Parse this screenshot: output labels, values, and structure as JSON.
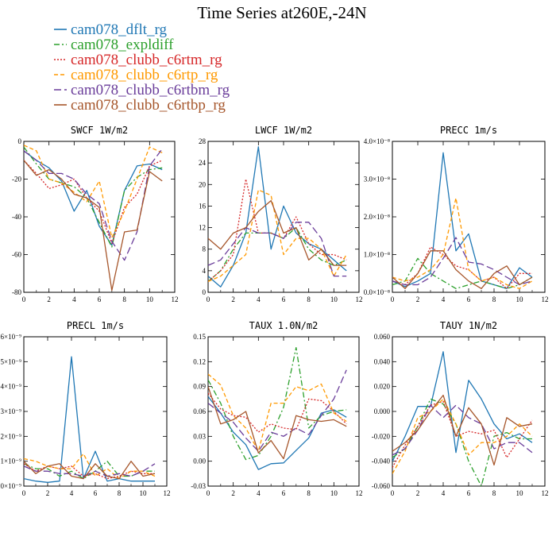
{
  "figure": {
    "title": "Time Series at260E,-24N"
  },
  "legend": [
    {
      "name": "cam078_dflt_rg",
      "color": "#1f77b4",
      "dash": "solid"
    },
    {
      "name": "cam078_expldiff",
      "color": "#2ca02c",
      "dash": "dashdot"
    },
    {
      "name": "cam078_clubb_c6rtm_rg",
      "color": "#d62728",
      "dash": "dotted"
    },
    {
      "name": "cam078_clubb_c6rtp_rg",
      "color": "#ff9900",
      "dash": "dashed"
    },
    {
      "name": "cam078_clubb_c6rtbm_rg",
      "color": "#6a3d9a",
      "dash": "longdash"
    },
    {
      "name": "cam078_clubb_c6rtbp_rg",
      "color": "#a6562b",
      "dash": "solid"
    }
  ],
  "chart_data": [
    {
      "type": "line",
      "title": "SWCF 1W/m2",
      "x": [
        0,
        1,
        2,
        3,
        4,
        5,
        6,
        7,
        8,
        9,
        10,
        11
      ],
      "xlim": [
        0,
        12
      ],
      "ylim": [
        -80,
        0
      ],
      "xticks": [
        0,
        2,
        4,
        6,
        8,
        10,
        12
      ],
      "yticks": [
        -80,
        -60,
        -40,
        -20,
        0
      ],
      "ytick_labels": [
        "-80",
        "-60",
        "-40",
        "-20",
        "0"
      ],
      "series": [
        {
          "values": [
            -5,
            -10,
            -14,
            -21,
            -37,
            -26,
            -45,
            -55,
            -26,
            -13,
            -12,
            -15
          ]
        },
        {
          "values": [
            -3,
            -12,
            -20,
            -22,
            -24,
            -30,
            -43,
            -56,
            -26,
            -19,
            -15,
            -14
          ]
        },
        {
          "values": [
            -10,
            -17,
            -25,
            -23,
            -20,
            -30,
            -37,
            -54,
            -35,
            -28,
            -13,
            -10
          ]
        },
        {
          "values": [
            -2,
            -5,
            -20,
            -22,
            -27,
            -32,
            -21,
            -51,
            -37,
            -20,
            -3,
            -6
          ]
        },
        {
          "values": [
            -5,
            -10,
            -17,
            -17,
            -20,
            -28,
            -33,
            -53,
            -63,
            -48,
            -13,
            -4
          ]
        },
        {
          "values": [
            -10,
            -18,
            -15,
            -20,
            -28,
            -30,
            -35,
            -79,
            -48,
            -47,
            -16,
            -21
          ]
        }
      ]
    },
    {
      "type": "line",
      "title": "LWCF 1W/m2",
      "x": [
        0,
        1,
        2,
        3,
        4,
        5,
        6,
        7,
        8,
        9,
        10,
        11
      ],
      "xlim": [
        0,
        12
      ],
      "ylim": [
        0,
        28
      ],
      "xticks": [
        0,
        2,
        4,
        6,
        8,
        10,
        12
      ],
      "yticks": [
        0,
        4,
        8,
        12,
        16,
        20,
        24,
        28
      ],
      "ytick_labels": [
        "0",
        "4",
        "8",
        "12",
        "16",
        "20",
        "24",
        "28"
      ],
      "series": [
        {
          "values": [
            3,
            1,
            5,
            11,
            27,
            8,
            16,
            11,
            9,
            8,
            6,
            4
          ]
        },
        {
          "values": [
            2,
            4,
            8,
            11,
            11,
            11,
            10,
            12,
            8,
            6,
            5,
            6
          ]
        },
        {
          "values": [
            2,
            4,
            7,
            21,
            11,
            11,
            10,
            14,
            9,
            7,
            7,
            6
          ]
        },
        {
          "values": [
            2,
            3,
            5,
            7,
            19,
            18,
            7,
            10,
            10,
            8,
            3,
            7
          ]
        },
        {
          "values": [
            5,
            6,
            9,
            12,
            11,
            11,
            10,
            13,
            13,
            10,
            3,
            3
          ]
        },
        {
          "values": [
            10,
            8,
            11,
            12,
            15,
            17,
            11,
            12,
            6,
            8,
            5,
            5
          ]
        }
      ]
    },
    {
      "type": "line",
      "title": "PRECC 1m/s",
      "x": [
        0,
        1,
        2,
        3,
        4,
        5,
        6,
        7,
        8,
        9,
        10,
        11
      ],
      "xlim": [
        0,
        12
      ],
      "ylim": [
        0,
        4e-08
      ],
      "xticks": [
        0,
        2,
        4,
        6,
        8,
        10,
        12
      ],
      "yticks": [
        0,
        1e-08,
        2e-08,
        3e-08,
        4e-08
      ],
      "ytick_labels": [
        "0.0×10⁻⁸",
        "1.0×10⁻⁸",
        "2.0×10⁻⁸",
        "3.0×10⁻⁸",
        "4.0×10⁻⁸"
      ],
      "series": [
        {
          "values": [
            3e-09,
            1.5e-09,
            3e-09,
            5e-09,
            3.7e-08,
            1.1e-08,
            1.55e-08,
            3e-09,
            2e-09,
            1e-09,
            6.5e-09,
            4e-09
          ]
        },
        {
          "values": [
            2e-09,
            3e-09,
            9e-09,
            5e-09,
            3e-09,
            1e-09,
            2e-09,
            3e-09,
            2e-09,
            1e-09,
            2e-09,
            4e-09
          ]
        },
        {
          "values": [
            3e-09,
            2e-09,
            5e-09,
            1.2e-08,
            1e-08,
            7e-09,
            6e-09,
            3e-09,
            4e-09,
            1e-09,
            5e-09,
            5e-09
          ]
        },
        {
          "values": [
            4e-09,
            3e-09,
            4e-09,
            6e-09,
            1e-08,
            2.5e-08,
            6e-09,
            3e-09,
            4e-09,
            2e-09,
            1e-09,
            3e-09
          ]
        },
        {
          "values": [
            3e-09,
            2e-09,
            2e-09,
            4e-09,
            9e-09,
            1.45e-08,
            8e-09,
            7.5e-09,
            6e-09,
            4e-09,
            2e-09,
            3e-09
          ]
        },
        {
          "values": [
            4e-09,
            1e-09,
            5e-09,
            1.1e-08,
            1.1e-08,
            6e-09,
            3e-09,
            1e-09,
            5e-09,
            7e-09,
            2e-09,
            4e-09
          ]
        }
      ]
    },
    {
      "type": "line",
      "title": "PRECL 1m/s",
      "x": [
        0,
        1,
        2,
        3,
        4,
        5,
        6,
        7,
        8,
        9,
        10,
        11
      ],
      "xlim": [
        0,
        12
      ],
      "ylim": [
        0,
        6e-09
      ],
      "xticks": [
        0,
        2,
        4,
        6,
        8,
        10,
        12
      ],
      "yticks": [
        0,
        1e-09,
        2e-09,
        3e-09,
        4e-09,
        5e-09,
        6e-09
      ],
      "ytick_labels": [
        "0×10⁻⁹",
        "1×10⁻⁹",
        "2×10⁻⁹",
        "3×10⁻⁹",
        "4×10⁻⁹",
        "5×10⁻⁹",
        "6×10⁻⁹"
      ],
      "series": [
        {
          "values": [
            3e-10,
            2e-10,
            1.5e-10,
            2e-10,
            5.2e-09,
            3e-10,
            1.4e-09,
            2e-10,
            3e-10,
            2e-10,
            2e-10,
            2e-10
          ]
        },
        {
          "values": [
            9e-10,
            7e-10,
            7e-10,
            4e-10,
            6e-10,
            3e-10,
            6e-10,
            1e-09,
            4e-10,
            4e-10,
            6e-10,
            6e-10
          ]
        },
        {
          "values": [
            9e-10,
            6e-10,
            8e-10,
            7e-10,
            8e-10,
            4e-10,
            5e-10,
            3e-10,
            4e-10,
            6e-10,
            5e-10,
            5e-10
          ]
        },
        {
          "values": [
            1.1e-09,
            1e-09,
            8e-10,
            7e-10,
            7e-10,
            1.3e-09,
            4e-10,
            7e-10,
            3e-10,
            6e-10,
            6e-10,
            4e-10
          ]
        },
        {
          "values": [
            8e-10,
            6e-10,
            6e-10,
            5e-10,
            5e-10,
            4e-10,
            6e-10,
            4e-10,
            5e-10,
            4e-10,
            6e-10,
            9e-10
          ]
        },
        {
          "values": [
            1e-09,
            5e-10,
            8e-10,
            9e-10,
            4e-10,
            3e-10,
            9e-10,
            4e-10,
            3e-10,
            1e-09,
            4e-10,
            5e-10
          ]
        }
      ]
    },
    {
      "type": "line",
      "title": "TAUX 1.0N/m2",
      "x": [
        0,
        1,
        2,
        3,
        4,
        5,
        6,
        7,
        8,
        9,
        10,
        11
      ],
      "xlim": [
        0,
        12
      ],
      "ylim": [
        -0.03,
        0.15
      ],
      "xticks": [
        0,
        2,
        4,
        6,
        8,
        10,
        12
      ],
      "yticks": [
        -0.03,
        0,
        0.03,
        0.06,
        0.09,
        0.12,
        0.15
      ],
      "ytick_labels": [
        "-0.03",
        "0.00",
        "0.03",
        "0.06",
        "0.09",
        "0.12",
        "0.15"
      ],
      "series": [
        {
          "values": [
            0.078,
            0.058,
            0.035,
            0.02,
            -0.01,
            -0.003,
            -0.002,
            0.013,
            0.028,
            0.058,
            0.062,
            0.053
          ]
        },
        {
          "values": [
            0.098,
            0.07,
            0.03,
            0.002,
            0.007,
            0.03,
            0.065,
            0.137,
            0.04,
            0.055,
            0.06,
            0.062
          ]
        },
        {
          "values": [
            0.082,
            0.063,
            0.055,
            0.053,
            0.035,
            0.045,
            0.04,
            0.038,
            0.075,
            0.073,
            0.06,
            0.045
          ]
        },
        {
          "values": [
            0.105,
            0.092,
            0.055,
            0.04,
            0.012,
            0.07,
            0.07,
            0.09,
            0.085,
            0.093,
            0.058,
            0.048
          ]
        },
        {
          "values": [
            0.07,
            0.058,
            0.047,
            0.028,
            0.012,
            0.035,
            0.03,
            0.04,
            0.032,
            0.055,
            0.075,
            0.11
          ]
        },
        {
          "values": [
            0.09,
            0.045,
            0.05,
            0.06,
            0.01,
            0.025,
            0.003,
            0.055,
            0.05,
            0.048,
            0.05,
            0.042
          ]
        }
      ]
    },
    {
      "type": "line",
      "title": "TAUY 1N/m2",
      "x": [
        0,
        1,
        2,
        3,
        4,
        5,
        6,
        7,
        8,
        9,
        10,
        11
      ],
      "xlim": [
        0,
        12
      ],
      "ylim": [
        -0.06,
        0.06
      ],
      "xticks": [
        0,
        2,
        4,
        6,
        8,
        10,
        12
      ],
      "yticks": [
        -0.06,
        -0.04,
        -0.02,
        0,
        0.02,
        0.04,
        0.06
      ],
      "ytick_labels": [
        "-0.060",
        "-0.040",
        "-0.020",
        "0.000",
        "0.020",
        "0.040",
        "0.060"
      ],
      "series": [
        {
          "values": [
            -0.04,
            -0.02,
            0.004,
            0.004,
            0.048,
            -0.033,
            0.025,
            0.01,
            -0.01,
            -0.022,
            -0.018,
            -0.025
          ]
        },
        {
          "values": [
            -0.037,
            -0.03,
            -0.012,
            0.01,
            0.006,
            -0.01,
            -0.04,
            -0.06,
            -0.02,
            -0.017,
            -0.022,
            -0.022
          ]
        },
        {
          "values": [
            -0.045,
            -0.027,
            -0.012,
            0.005,
            0.008,
            -0.02,
            -0.016,
            -0.018,
            -0.015,
            -0.037,
            -0.022,
            -0.007
          ]
        },
        {
          "values": [
            -0.05,
            -0.032,
            -0.005,
            0.0,
            0.01,
            -0.01,
            -0.035,
            -0.025,
            -0.025,
            -0.02,
            -0.01,
            -0.02
          ]
        },
        {
          "values": [
            -0.035,
            -0.03,
            -0.015,
            0.005,
            -0.005,
            0.005,
            -0.005,
            -0.01,
            -0.03,
            -0.025,
            -0.025,
            -0.033
          ]
        },
        {
          "values": [
            -0.032,
            -0.025,
            -0.015,
            0.0,
            0.013,
            -0.02,
            0.003,
            -0.01,
            -0.043,
            -0.005,
            -0.012,
            -0.01
          ]
        }
      ]
    }
  ]
}
